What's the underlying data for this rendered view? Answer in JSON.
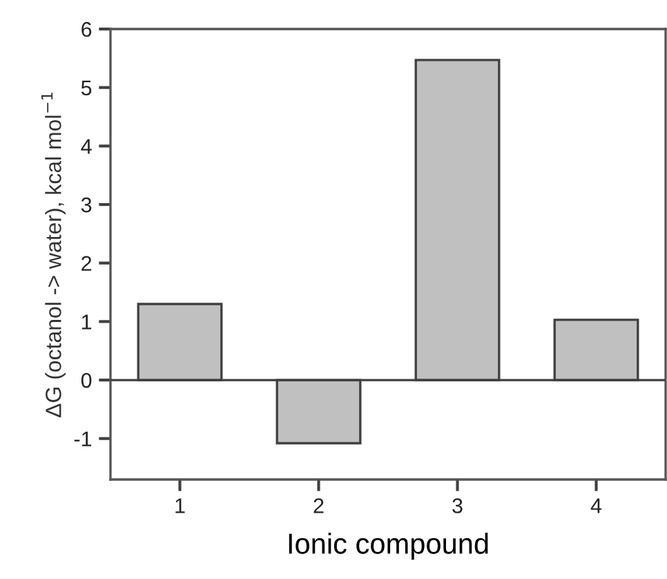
{
  "chart_data": {
    "type": "bar",
    "xlabel": "Ionic compound",
    "ylabel": "ΔG (octanol -> water), kcal mol$^{−1}$",
    "categories": [
      "1",
      "2",
      "3",
      "4"
    ],
    "values": [
      1.3,
      -1.08,
      5.47,
      1.03
    ],
    "color": "#c0c0c0",
    "ylim": [
      -1.7,
      6
    ],
    "yticks": [
      -1,
      0,
      1,
      2,
      3,
      4,
      5,
      6
    ],
    "ref_lines": [
      {
        "axis": "y",
        "value": 0,
        "color": "#404040"
      }
    ],
    "grid": false,
    "legend": false
  }
}
